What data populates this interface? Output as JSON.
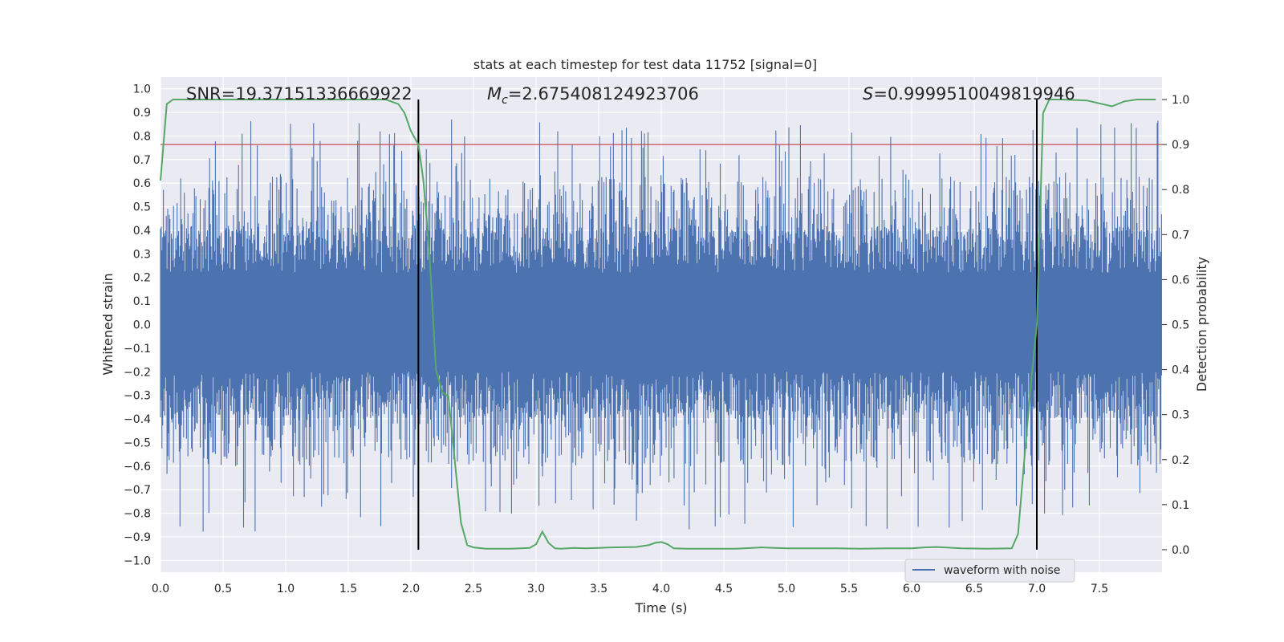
{
  "chart_data": {
    "type": "line",
    "title": "stats at each timestep for test data 11752 [signal=0]",
    "xlabel": "Time (s)",
    "ylabel_left": "Whitened strain",
    "ylabel_right": "Detection probability",
    "xlim": [
      0.0,
      8.0
    ],
    "ylim_left": [
      -1.05,
      1.05
    ],
    "ylim_right": [
      -0.05,
      1.05
    ],
    "x_ticks": [
      "0.0",
      "0.5",
      "1.0",
      "1.5",
      "2.0",
      "2.5",
      "3.0",
      "3.5",
      "4.0",
      "4.5",
      "5.0",
      "5.5",
      "6.0",
      "6.5",
      "7.0",
      "7.5"
    ],
    "x_tick_values": [
      0.0,
      0.5,
      1.0,
      1.5,
      2.0,
      2.5,
      3.0,
      3.5,
      4.0,
      4.5,
      5.0,
      5.5,
      6.0,
      6.5,
      7.0,
      7.5
    ],
    "y_left_ticks": [
      "1.0",
      "0.9",
      "0.8",
      "0.7",
      "0.6",
      "0.5",
      "0.4",
      "0.3",
      "0.2",
      "0.1",
      "0.0",
      "−0.1",
      "−0.2",
      "−0.3",
      "−0.4",
      "−0.5",
      "−0.6",
      "−0.7",
      "−0.8",
      "−0.9",
      "−1.0"
    ],
    "y_left_tick_values": [
      1.0,
      0.9,
      0.8,
      0.7,
      0.6,
      0.5,
      0.4,
      0.3,
      0.2,
      0.1,
      0.0,
      -0.1,
      -0.2,
      -0.3,
      -0.4,
      -0.5,
      -0.6,
      -0.7,
      -0.8,
      -0.9,
      -1.0
    ],
    "y_right_ticks": [
      "1.0",
      "0.9",
      "0.8",
      "0.7",
      "0.6",
      "0.5",
      "0.4",
      "0.3",
      "0.2",
      "0.1",
      "0.0"
    ],
    "y_right_tick_values": [
      1.0,
      0.9,
      0.8,
      0.7,
      0.6,
      0.5,
      0.4,
      0.3,
      0.2,
      0.1,
      0.0
    ],
    "annotations": {
      "snr": "SNR=19.37151336669922",
      "mc_symbol": "M",
      "mc_sub": "c",
      "mc_value": "=2.675408124923706",
      "s_symbol": "S",
      "s_value": "=0.9999510049819946"
    },
    "threshold_right": 0.9,
    "vertical_lines_x": [
      2.06,
      7.0
    ],
    "waveform": {
      "name": "waveform with noise",
      "color": "#4c72b0",
      "amplitude_envelope": [
        -0.95,
        1.0
      ]
    },
    "detection_probability": {
      "color": "#55a868",
      "x": [
        0.0,
        0.05,
        0.1,
        0.2,
        0.3,
        0.5,
        0.8,
        1.0,
        1.2,
        1.4,
        1.6,
        1.8,
        1.9,
        1.95,
        2.0,
        2.06,
        2.1,
        2.15,
        2.2,
        2.25,
        2.3,
        2.35,
        2.4,
        2.45,
        2.5,
        2.6,
        2.8,
        2.95,
        3.0,
        3.05,
        3.1,
        3.15,
        3.2,
        3.3,
        3.4,
        3.5,
        3.6,
        3.8,
        3.9,
        3.95,
        4.0,
        4.05,
        4.1,
        4.2,
        4.4,
        4.6,
        4.8,
        5.0,
        5.2,
        5.4,
        5.6,
        5.8,
        6.0,
        6.1,
        6.2,
        6.4,
        6.6,
        6.8,
        6.85,
        6.9,
        6.95,
        7.0,
        7.05,
        7.1,
        7.2,
        7.4,
        7.6,
        7.7,
        7.8,
        7.95
      ],
      "y": [
        0.82,
        0.99,
        1.0,
        1.0,
        1.0,
        1.0,
        1.0,
        1.0,
        1.0,
        1.0,
        1.0,
        1.0,
        0.99,
        0.97,
        0.93,
        0.9,
        0.82,
        0.65,
        0.4,
        0.35,
        0.34,
        0.2,
        0.06,
        0.01,
        0.005,
        0.002,
        0.002,
        0.004,
        0.012,
        0.04,
        0.015,
        0.003,
        0.002,
        0.004,
        0.003,
        0.004,
        0.005,
        0.006,
        0.01,
        0.015,
        0.017,
        0.012,
        0.003,
        0.002,
        0.002,
        0.002,
        0.005,
        0.003,
        0.003,
        0.003,
        0.002,
        0.003,
        0.003,
        0.005,
        0.006,
        0.003,
        0.002,
        0.003,
        0.035,
        0.2,
        0.36,
        0.5,
        0.97,
        1.0,
        1.0,
        0.998,
        0.985,
        0.996,
        1.0,
        1.0
      ]
    },
    "threshold_color": "#c44e52",
    "legend": [
      "waveform with noise"
    ],
    "legend_position": "lower-right",
    "grid": true,
    "background": "#eaeaf2"
  }
}
